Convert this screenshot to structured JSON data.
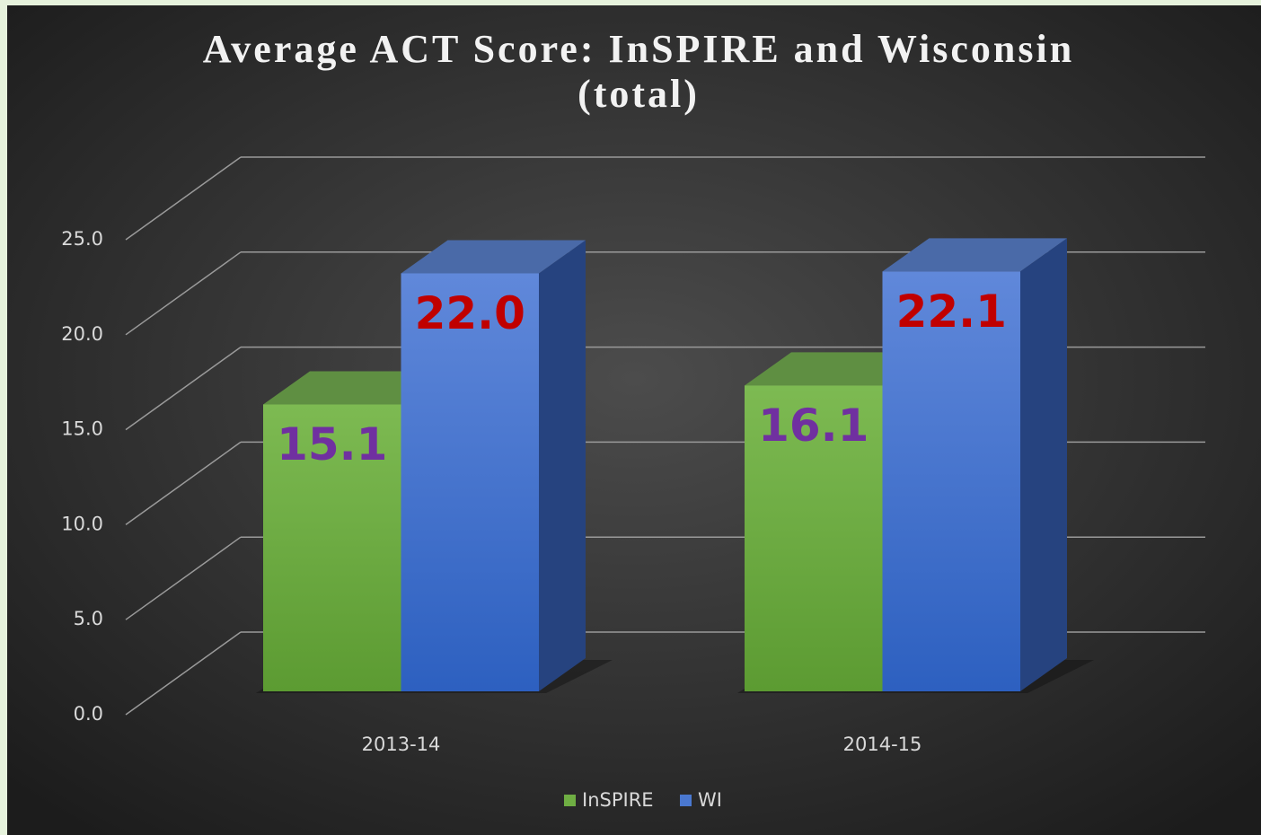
{
  "chart_data": {
    "type": "bar3d",
    "title": "Average ACT Score: InSPIRE and Wisconsin (total)",
    "categories": [
      "2013-14",
      "2014-15"
    ],
    "series": [
      {
        "name": "InSPIRE",
        "color": "#6fae43",
        "values": [
          15.1,
          16.1
        ],
        "value_labels": [
          "15.1",
          "16.1"
        ],
        "label_color": "#7030a0"
      },
      {
        "name": "WI",
        "color": "#4a78d0",
        "values": [
          22.0,
          22.1
        ],
        "value_labels": [
          "22.0",
          "22.1"
        ],
        "label_color": "#c00000"
      }
    ],
    "ylim": [
      0,
      25
    ],
    "yticks": [
      {
        "value": 0,
        "label": "0.0"
      },
      {
        "value": 5,
        "label": "5.0"
      },
      {
        "value": 10,
        "label": "10.0"
      },
      {
        "value": 15,
        "label": "15.0"
      },
      {
        "value": 20,
        "label": "20.0"
      },
      {
        "value": 25,
        "label": "25.0"
      }
    ],
    "grid": true,
    "legend": "bottom"
  }
}
